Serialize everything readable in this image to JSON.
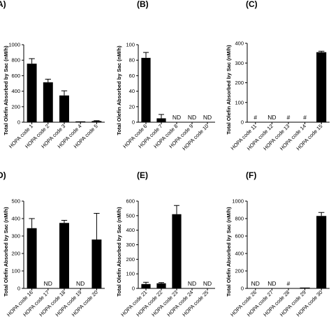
{
  "chart_data": [
    {
      "panel_label": "(A)",
      "type": "bar",
      "ylabel": "Total Olefin Absorbed by Sac (nM/h)",
      "ylim": [
        0,
        1000
      ],
      "yticks": [
        0,
        200,
        400,
        600,
        800,
        1000
      ],
      "categories": [
        "HOPA code 1",
        "HOPA code 2",
        "HOPA code 3",
        "HOPA code 4",
        "HOPA code 5"
      ],
      "values": [
        755,
        515,
        345,
        5,
        15
      ],
      "errors": [
        65,
        40,
        60,
        0,
        5
      ],
      "annotations": [
        "",
        "",
        "",
        "",
        ""
      ]
    },
    {
      "panel_label": "(B)",
      "type": "bar",
      "ylabel": "Total Olefin Absorbed by Sac (nM/h)",
      "ylim": [
        0,
        100
      ],
      "yticks": [
        0,
        20,
        40,
        60,
        80,
        100
      ],
      "categories": [
        "HOPA code 6",
        "HOPA code 7",
        "HOPA code 8",
        "HOPA code 9",
        "HOPA code 10"
      ],
      "values": [
        83,
        5,
        0,
        0,
        0
      ],
      "errors": [
        7,
        5,
        0,
        0,
        0
      ],
      "annotations": [
        "",
        "",
        "ND",
        "ND",
        "ND"
      ]
    },
    {
      "panel_label": "(C)",
      "type": "bar",
      "ylabel": "Total Olefin Absorbed by Sac (nM/h)",
      "ylim": [
        0,
        400
      ],
      "yticks": [
        0,
        100,
        200,
        300,
        400
      ],
      "categories": [
        "HOPA code 11",
        "HOPA code 12",
        "HOPA code 13",
        "HOPA code 14",
        "HOPA code 15"
      ],
      "values": [
        0,
        0,
        0,
        0,
        355
      ],
      "errors": [
        0,
        0,
        0,
        0,
        5
      ],
      "annotations": [
        "#",
        "ND",
        "#",
        "#",
        ""
      ]
    },
    {
      "panel_label": "(D)",
      "type": "bar",
      "ylabel": "Total Olefin Absorbed by Sac (nM/h)",
      "ylim": [
        0,
        500
      ],
      "yticks": [
        0,
        100,
        200,
        300,
        400,
        500
      ],
      "categories": [
        "HOPA code 16",
        "HOPA code 17",
        "HOPA code 18",
        "HOPA code 19",
        "HOPA code 20"
      ],
      "values": [
        345,
        0,
        375,
        0,
        280
      ],
      "errors": [
        55,
        0,
        15,
        0,
        150
      ],
      "annotations": [
        "",
        "ND",
        "",
        "ND",
        ""
      ]
    },
    {
      "panel_label": "(E)",
      "type": "bar",
      "ylabel": "Total Olefin Absorbed by Sac (nM/h)",
      "ylim": [
        0,
        600
      ],
      "yticks": [
        0,
        100,
        200,
        300,
        400,
        500,
        600
      ],
      "categories": [
        "HOPA code 21",
        "HOPA code 22",
        "HOPA code 23",
        "HOPA code 24",
        "HOPA code 25"
      ],
      "values": [
        30,
        35,
        510,
        0,
        0
      ],
      "errors": [
        12,
        5,
        60,
        0,
        0
      ],
      "annotations": [
        "",
        "",
        "",
        "ND",
        "ND"
      ]
    },
    {
      "panel_label": "(F)",
      "type": "bar",
      "ylabel": "Total Olefin Absorbed by Sac (nM/h)",
      "ylim": [
        0,
        1000
      ],
      "yticks": [
        0,
        200,
        400,
        600,
        800,
        1000
      ],
      "categories": [
        "HOPA code 26",
        "HOPA code 27",
        "HOPA code 28",
        "HOPA code 29",
        "HOPA code 30"
      ],
      "values": [
        0,
        0,
        0,
        5,
        830
      ],
      "errors": [
        0,
        0,
        0,
        0,
        40
      ],
      "annotations": [
        "ND",
        "ND",
        "#",
        "",
        ""
      ]
    }
  ],
  "colors": {
    "bar": "#000000",
    "axis": "#000000",
    "text": "#000000"
  }
}
